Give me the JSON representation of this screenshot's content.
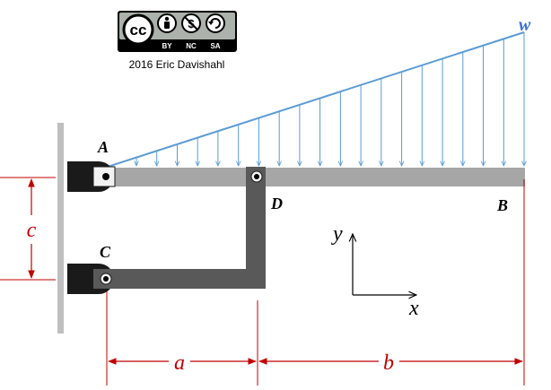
{
  "license": {
    "badge_text": "cc",
    "terms": [
      "BY",
      "NC",
      "SA"
    ],
    "credit": "2016 Eric Davishahl"
  },
  "labels": {
    "load": "w",
    "point_a": "A",
    "point_b": "B",
    "point_c": "C",
    "point_d": "D"
  },
  "dimensions": {
    "vertical": "c",
    "horizontal_left": "a",
    "horizontal_right": "b"
  },
  "axes": {
    "y": "y",
    "x": "x"
  },
  "colors": {
    "load_arrows": "#5b9bd5",
    "dimension": "#c00000",
    "beam": "#a6a6a6",
    "bracket": "#595959",
    "support_block": "#1a1a1a",
    "wall": "#bfbfbf",
    "labels": "#000000"
  }
}
